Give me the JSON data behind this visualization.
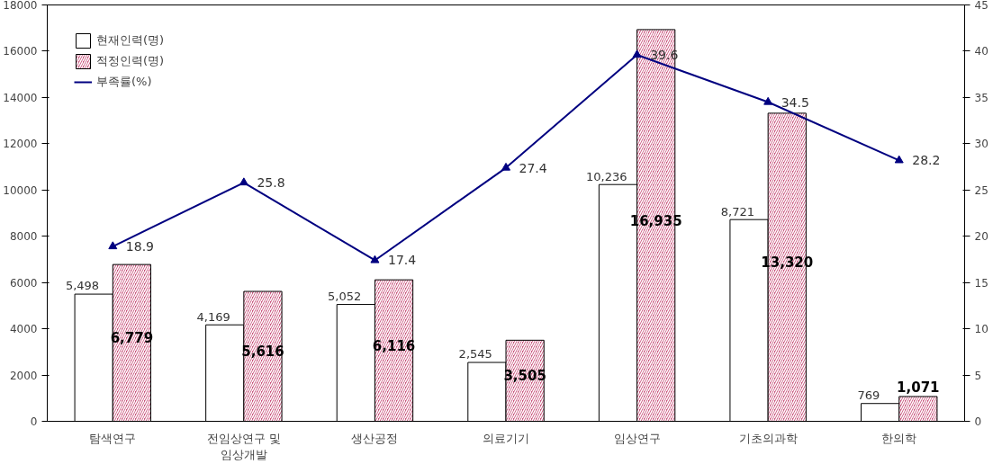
{
  "chart_data": {
    "type": "bar",
    "categories": [
      "탐색연구",
      "전임상연구 및\n임상개발",
      "생산공정",
      "의료기기",
      "임상연구",
      "기초의과학",
      "한의학"
    ],
    "series": [
      {
        "name": "현재인력(명)",
        "color": "#ffffff",
        "values": [
          5498,
          4169,
          5052,
          2545,
          10236,
          8721,
          769
        ],
        "value_labels": [
          "5,498",
          "4,169",
          "5,052",
          "2,545",
          "10,236",
          "8,721",
          "769"
        ]
      },
      {
        "name": "적정인력(명)",
        "color": "#c8507a",
        "values": [
          6779,
          5616,
          6116,
          3505,
          16935,
          13320,
          1071
        ],
        "value_labels": [
          "6,779",
          "5,616",
          "6,116",
          "3,505",
          "16,935",
          "13,320",
          "1,071"
        ]
      },
      {
        "name": "부족률(%)",
        "type": "line",
        "axis": "y2",
        "color": "#000080",
        "values": [
          18.9,
          25.8,
          17.4,
          27.4,
          39.6,
          34.5,
          28.2
        ],
        "value_labels": [
          "18.9",
          "25.8",
          "17.4",
          "27.4",
          "39.6",
          "34.5",
          "28.2"
        ]
      }
    ],
    "ylim": [
      0,
      18000
    ],
    "yticks": [
      0,
      2000,
      4000,
      6000,
      8000,
      10000,
      12000,
      14000,
      16000,
      18000
    ],
    "y2lim": [
      0,
      45
    ],
    "y2ticks": [
      0,
      5,
      10,
      15,
      20,
      25,
      30,
      35,
      40,
      45
    ],
    "grid": false,
    "legend": "top left",
    "marker": "triangle",
    "line_style": "solid"
  }
}
